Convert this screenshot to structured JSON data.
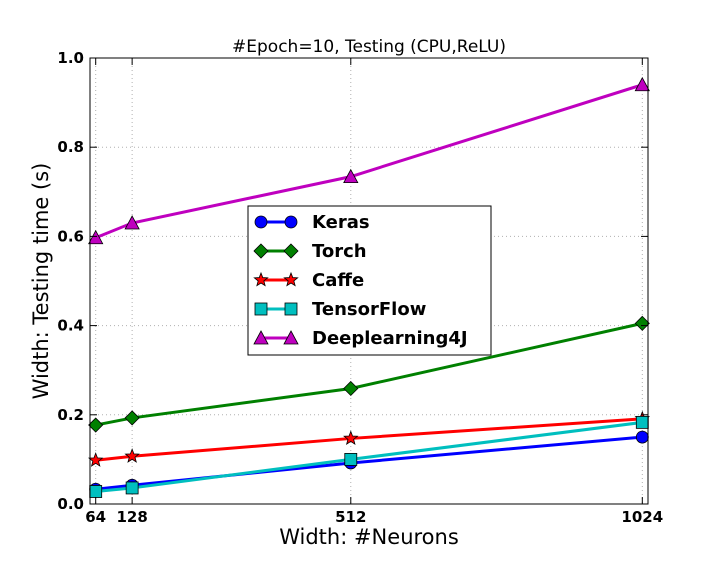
{
  "chart_data": {
    "type": "line",
    "title": "#Epoch=10, Testing (CPU,ReLU)",
    "xlabel": "Width: #Neurons",
    "ylabel": "Width: Testing time (s)",
    "x": [
      64,
      128,
      512,
      1024
    ],
    "x_ticks": [
      "64",
      "128",
      "512",
      "1024"
    ],
    "y_ticks": [
      "0.0",
      "0.2",
      "0.4",
      "0.6",
      "0.8",
      "1.0"
    ],
    "xlim": [
      54,
      1034
    ],
    "ylim": [
      0,
      1.0
    ],
    "grid": true,
    "legend_position": "center-left",
    "series": [
      {
        "name": "Keras",
        "values": [
          0.033,
          0.042,
          0.092,
          0.15
        ],
        "color": "#0000ff",
        "marker": "circle"
      },
      {
        "name": "Torch",
        "values": [
          0.177,
          0.193,
          0.259,
          0.405
        ],
        "color": "#008000",
        "marker": "diamond"
      },
      {
        "name": "Caffe",
        "values": [
          0.098,
          0.107,
          0.147,
          0.191
        ],
        "color": "#ff0000",
        "marker": "star"
      },
      {
        "name": "TensorFlow",
        "values": [
          0.028,
          0.036,
          0.1,
          0.183
        ],
        "color": "#00bfbf",
        "marker": "square"
      },
      {
        "name": "Deeplearning4J",
        "values": [
          0.597,
          0.63,
          0.734,
          0.94
        ],
        "color": "#bf00bf",
        "marker": "triangle"
      }
    ]
  }
}
